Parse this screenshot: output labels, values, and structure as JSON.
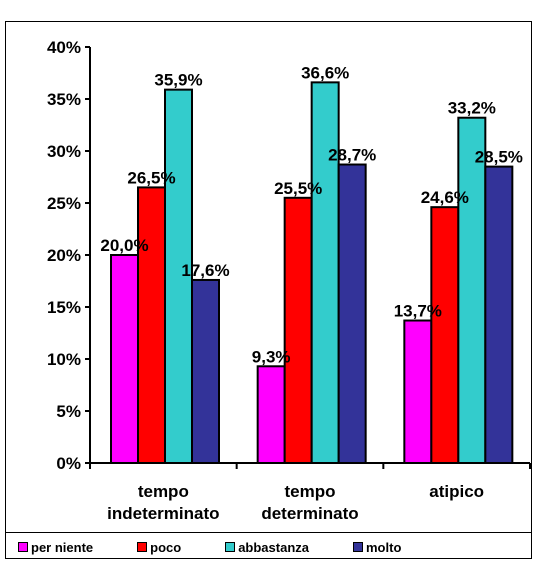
{
  "chart_data": {
    "type": "bar",
    "categories": [
      [
        "tempo",
        "indeterminato"
      ],
      [
        "tempo",
        "determinato"
      ],
      [
        "atipico"
      ]
    ],
    "series": [
      {
        "name": "per niente",
        "color": "#FF00FF",
        "values": [
          20.0,
          9.3,
          13.7
        ],
        "labels": [
          "20,0%",
          "9,3%",
          "13,7%"
        ]
      },
      {
        "name": "poco",
        "color": "#FF0000",
        "values": [
          26.5,
          25.5,
          24.6
        ],
        "labels": [
          "26,5%",
          "25,5%",
          "24,6%"
        ]
      },
      {
        "name": "abbastanza",
        "color": "#33CCCC",
        "values": [
          35.9,
          36.6,
          33.2
        ],
        "labels": [
          "35,9%",
          "36,6%",
          "33,2%"
        ]
      },
      {
        "name": "molto",
        "color": "#333399",
        "values": [
          17.6,
          28.7,
          28.5
        ],
        "labels": [
          "17,6%",
          "28,7%",
          "28,5%"
        ]
      }
    ],
    "ylim": [
      0,
      40
    ],
    "yticks": [
      "0%",
      "5%",
      "10%",
      "15%",
      "20%",
      "25%",
      "30%",
      "35%",
      "40%"
    ],
    "grid": false,
    "legend": "bottom"
  }
}
